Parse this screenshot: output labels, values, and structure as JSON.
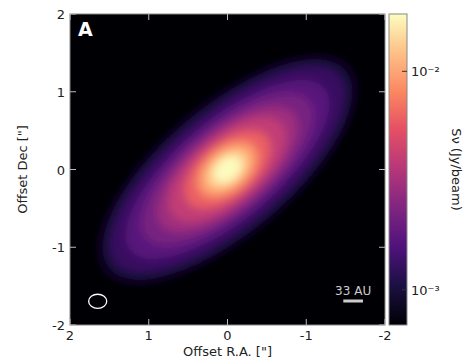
{
  "chart_data": {
    "type": "image",
    "panel_label": "A",
    "x_label": "Offset R.A. [\"]",
    "y_label": "Offset Dec [\"]",
    "xlim": [
      2,
      -2
    ],
    "ylim": [
      -2,
      2
    ],
    "xticks": [
      2,
      1,
      0,
      -1,
      -2
    ],
    "yticks": [
      -2,
      -1,
      0,
      1,
      2
    ],
    "position_angle": 130,
    "isophotes": {
      "levels": [
        0.0008,
        0.001,
        0.0013,
        0.0017,
        0.0022,
        0.003,
        0.004,
        0.006,
        0.009,
        0.013,
        0.018
      ],
      "major": [
        2.05,
        1.95,
        1.85,
        1.6,
        1.35,
        1.1,
        0.9,
        0.65,
        0.45,
        0.32,
        0.2
      ],
      "minor": [
        0.85,
        0.8,
        0.72,
        0.62,
        0.55,
        0.48,
        0.42,
        0.35,
        0.28,
        0.2,
        0.14
      ]
    },
    "colorbar_label": "Sν (Jy/beam)",
    "colorbar_lim": [
      0.00069,
      0.0183
    ],
    "colorbar_ticks": [
      {
        "value": 0.001,
        "label": "10⁻³"
      },
      {
        "value": 0.01,
        "label": "10⁻²"
      }
    ],
    "beam": {
      "major": 0.23,
      "minor": 0.18
    },
    "scale_bar": {
      "label": "33 AU",
      "length": 0.25
    }
  }
}
